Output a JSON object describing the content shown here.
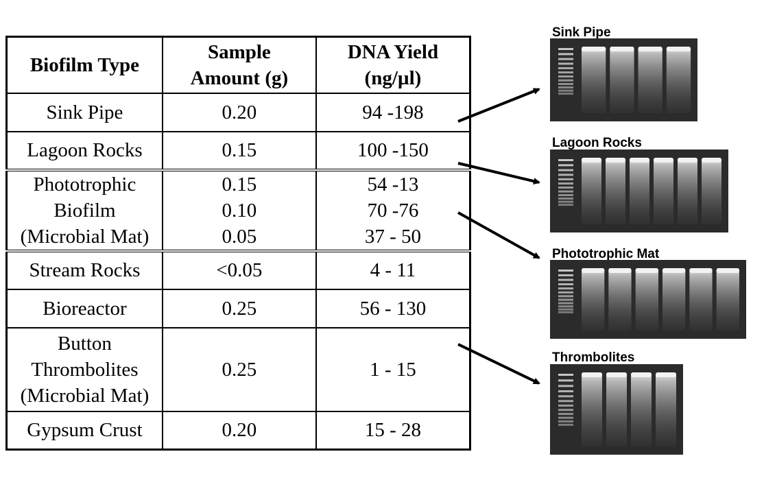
{
  "table": {
    "headers": [
      [
        "Biofilm Type"
      ],
      [
        "Sample",
        "Amount (g)"
      ],
      [
        "DNA Yield",
        "(ng/µl)"
      ]
    ],
    "rows": [
      {
        "type": [
          "Sink  Pipe"
        ],
        "amount": [
          "0.20"
        ],
        "yield": [
          "94 -198"
        ]
      },
      {
        "type": [
          "Lagoon Rocks"
        ],
        "amount": [
          "0.15"
        ],
        "yield": [
          "100 -150"
        ]
      },
      {
        "type": [
          "Phototrophic",
          "Biofilm",
          "(Microbial Mat)"
        ],
        "amount": [
          "0.15",
          "0.10",
          "0.05"
        ],
        "yield": [
          "54 -13",
          "70 -76",
          "37 - 50"
        ]
      },
      {
        "type": [
          "Stream Rocks"
        ],
        "amount": [
          "<0.05"
        ],
        "yield": [
          "4 - 11"
        ]
      },
      {
        "type": [
          "Bioreactor"
        ],
        "amount": [
          "0.25"
        ],
        "yield": [
          "56 - 130"
        ]
      },
      {
        "type": [
          "Button",
          "Thrombolites",
          "(Microbial Mat)"
        ],
        "amount": [
          "0.25"
        ],
        "yield": [
          "1 - 15"
        ]
      },
      {
        "type": [
          "Gypsum Crust"
        ],
        "amount": [
          "0.20"
        ],
        "yield": [
          "15 - 28"
        ]
      }
    ]
  },
  "gels": [
    {
      "label": "Sink Pipe",
      "lanes": 4
    },
    {
      "label": "Lagoon Rocks",
      "lanes": 6
    },
    {
      "label": "Phototrophic Mat",
      "lanes": 6
    },
    {
      "label": "Thrombolites",
      "lanes": 4
    }
  ],
  "colors": {
    "text": "#000000",
    "gel_background": "#2b2b2b",
    "band": "#f2f2f2"
  }
}
